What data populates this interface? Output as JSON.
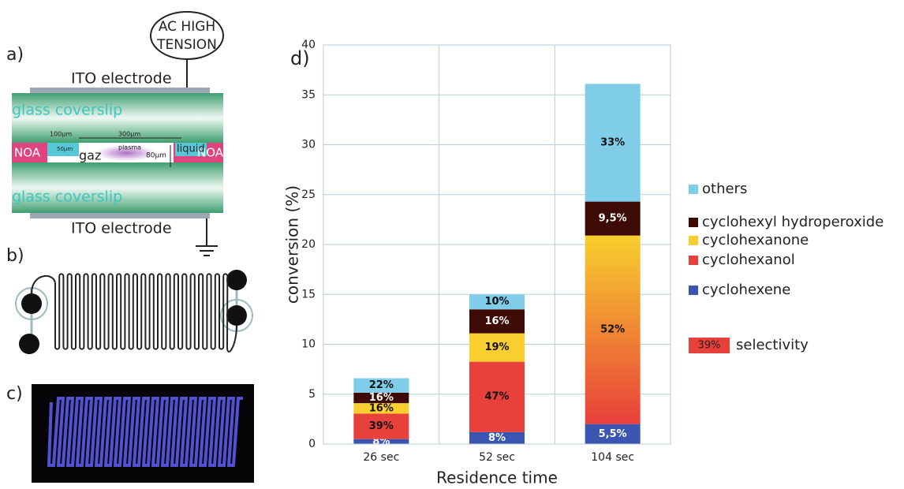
{
  "panels": {
    "a": "a)",
    "b": "b)",
    "c": "c)",
    "d": "d)"
  },
  "diagram": {
    "source": [
      "AC HIGH",
      "TENSION"
    ],
    "electrode_top": "ITO electrode",
    "electrode_bottom": "ITO electrode",
    "glass_top": "glass coverslip",
    "glass_bottom": "glass coverslip",
    "noa_left": "NOA",
    "noa_right": "NOA",
    "gas": "gaz",
    "plasma": "plasma",
    "liquid": "liquid",
    "dim_100": "100μm",
    "dim_300": "300μm",
    "dim_50": "50μm",
    "dim_80": "80μm"
  },
  "chart_data": {
    "type": "stacked_bar",
    "x_label": "Residence time",
    "y_label": "conversion (%)",
    "categories": [
      "26 sec",
      "52 sec",
      "104 sec"
    ],
    "series": [
      {
        "name": "cyclohexene",
        "color": "#3a56b0",
        "values": [
          0.5,
          1.2,
          2.0
        ],
        "selectivity": [
          "8%",
          "8%",
          "5,5%"
        ]
      },
      {
        "name": "cyclohexanol",
        "color": "#e8403a",
        "values": [
          2.55,
          7.05,
          18.9
        ],
        "selectivity": [
          "39%",
          "47%",
          "52%"
        ]
      },
      {
        "name": "cyclohexanone",
        "color": "#f8cf2e",
        "values": [
          1.05,
          2.85,
          null
        ],
        "selectivity": [
          "16%",
          "19%",
          null
        ]
      },
      {
        "name": "cyclohexyl hydroperoxide",
        "color": "#3d0a06",
        "values": [
          1.05,
          2.4,
          3.4
        ],
        "selectivity": [
          "16%",
          "16%",
          "9,5%"
        ]
      },
      {
        "name": "others",
        "color": "#7fcde8",
        "values": [
          1.45,
          1.5,
          11.8
        ],
        "selectivity": [
          "22%",
          "10%",
          "33%"
        ]
      }
    ],
    "selectivity_legend": {
      "label": "39%",
      "text": "selectivity"
    },
    "ylim": [
      0,
      40
    ],
    "yticks": [
      0,
      5,
      10,
      15,
      20,
      25,
      30,
      35,
      40
    ],
    "grid": true
  }
}
